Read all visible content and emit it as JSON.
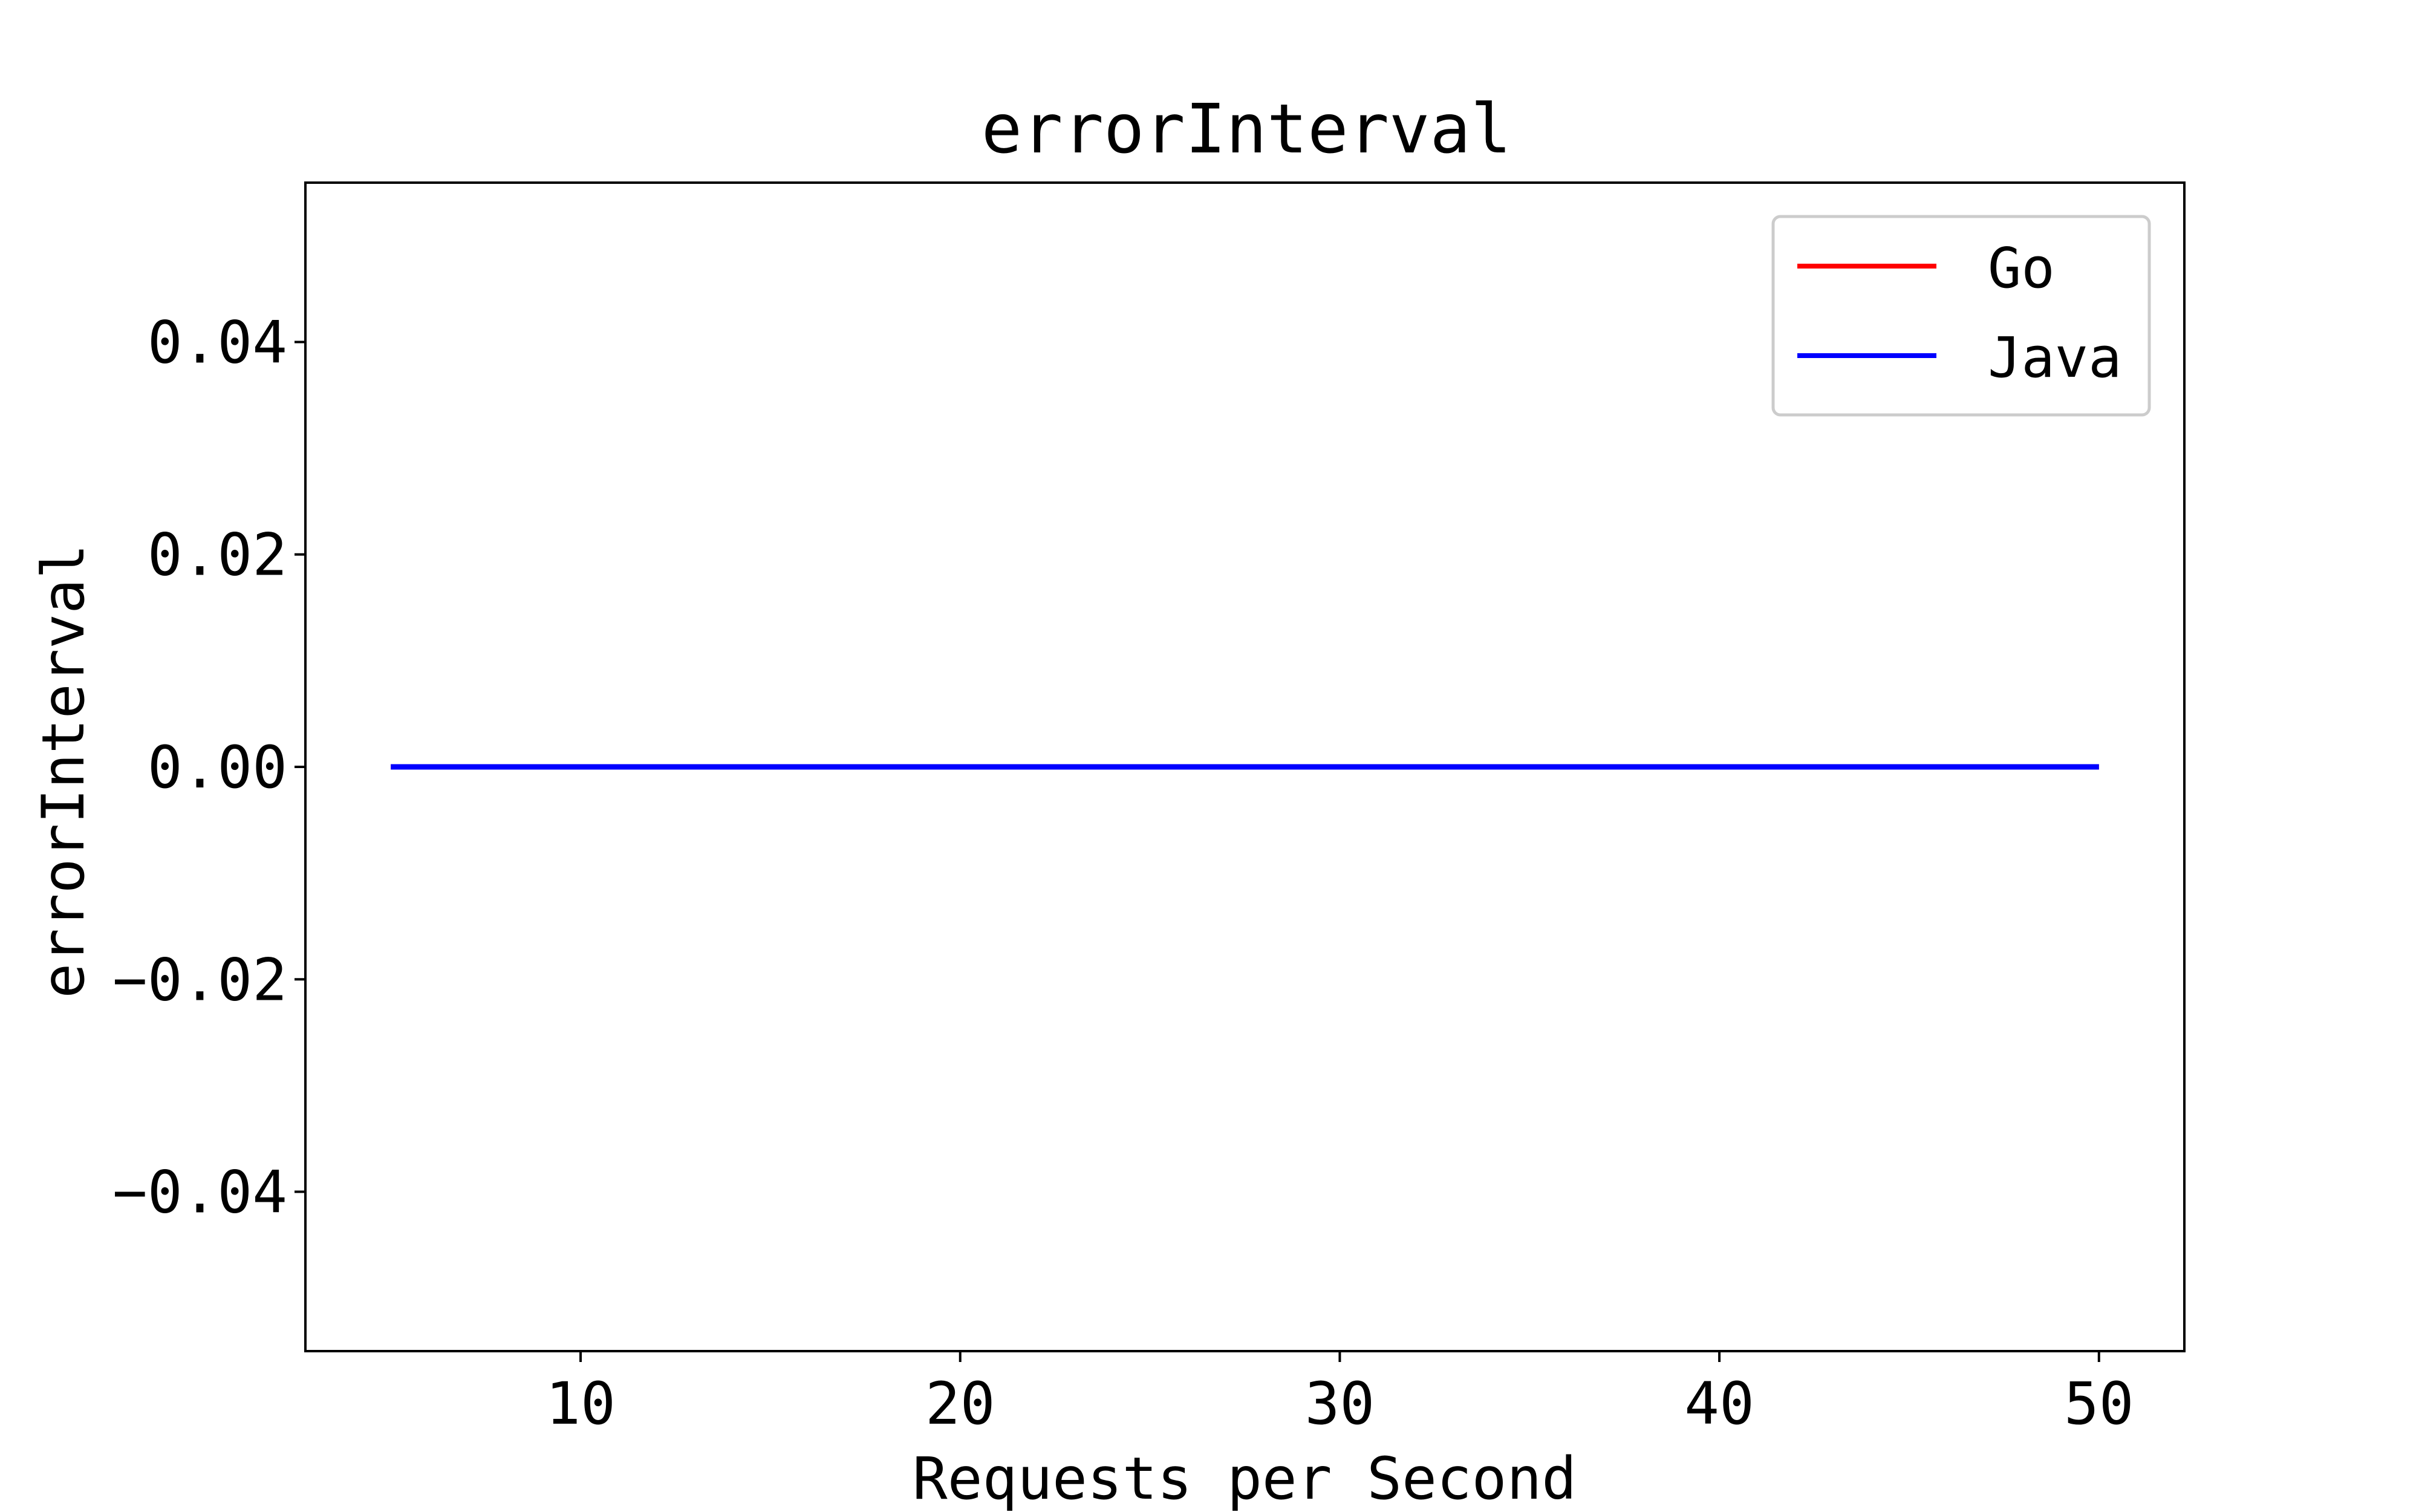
{
  "chart_data": {
    "type": "line",
    "title": "errorInterval",
    "xlabel": "Requests per Second",
    "ylabel": "errorInterval",
    "x_ticks": [
      10,
      20,
      30,
      40,
      50
    ],
    "y_ticks": [
      -0.04,
      -0.02,
      0.0,
      0.02,
      0.04
    ],
    "y_tick_labels": [
      "−0.04",
      "−0.02",
      "0.00",
      "0.02",
      "0.04"
    ],
    "xlim": [
      2.75,
      52.25
    ],
    "ylim": [
      -0.055,
      0.055
    ],
    "grid": false,
    "legend_position": "top-right",
    "series": [
      {
        "name": "Go",
        "color": "#ff0000",
        "x": [
          5,
          10,
          15,
          20,
          25,
          30,
          35,
          40,
          45,
          50
        ],
        "y": [
          0,
          0,
          0,
          0,
          0,
          0,
          0,
          0,
          0,
          0
        ]
      },
      {
        "name": "Java",
        "color": "#0000ff",
        "x": [
          5,
          10,
          15,
          20,
          25,
          30,
          35,
          40,
          45,
          50
        ],
        "y": [
          0,
          0,
          0,
          0,
          0,
          0,
          0,
          0,
          0,
          0
        ]
      }
    ]
  }
}
